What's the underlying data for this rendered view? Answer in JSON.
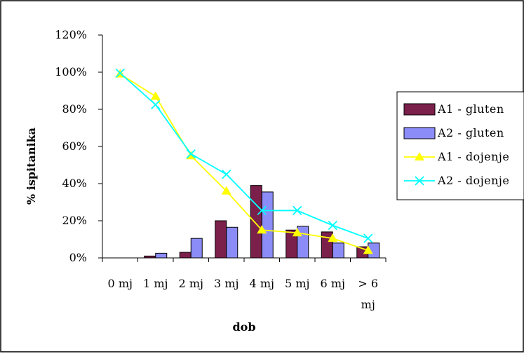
{
  "chart_data": {
    "type": "bar",
    "xlabel": "dob",
    "ylabel": "% ispitanika",
    "categories": [
      "0 mj",
      "1 mj",
      "2 mj",
      "3 mj",
      "4 mj",
      "5 mj",
      "6 mj",
      "> 6 mj"
    ],
    "ylim": [
      0,
      120
    ],
    "yticks": [
      "0%",
      "20%",
      "40%",
      "60%",
      "80%",
      "100%",
      "120%"
    ],
    "grid": false,
    "legend_position": "right",
    "series": [
      {
        "name": "A1 - gluten",
        "type": "bar",
        "color": "#7b1f4b",
        "values": [
          0,
          1,
          3,
          20,
          39,
          15,
          14,
          6
        ]
      },
      {
        "name": "A2 - gluten",
        "type": "bar",
        "color": "#8c8cf8",
        "values": [
          0,
          2.5,
          10.5,
          16.5,
          35.5,
          17,
          8,
          8
        ]
      },
      {
        "name": "A1 - dojenje",
        "type": "line",
        "marker": "triangle",
        "color": "#ffff00",
        "values": [
          99,
          87,
          55,
          36,
          15,
          13.5,
          10.5,
          4
        ]
      },
      {
        "name": "A2 - dojenje",
        "type": "line",
        "marker": "x",
        "color": "#00ffff",
        "values": [
          99.5,
          82.5,
          56,
          45,
          25.5,
          25.5,
          17.5,
          10.5
        ]
      }
    ]
  }
}
